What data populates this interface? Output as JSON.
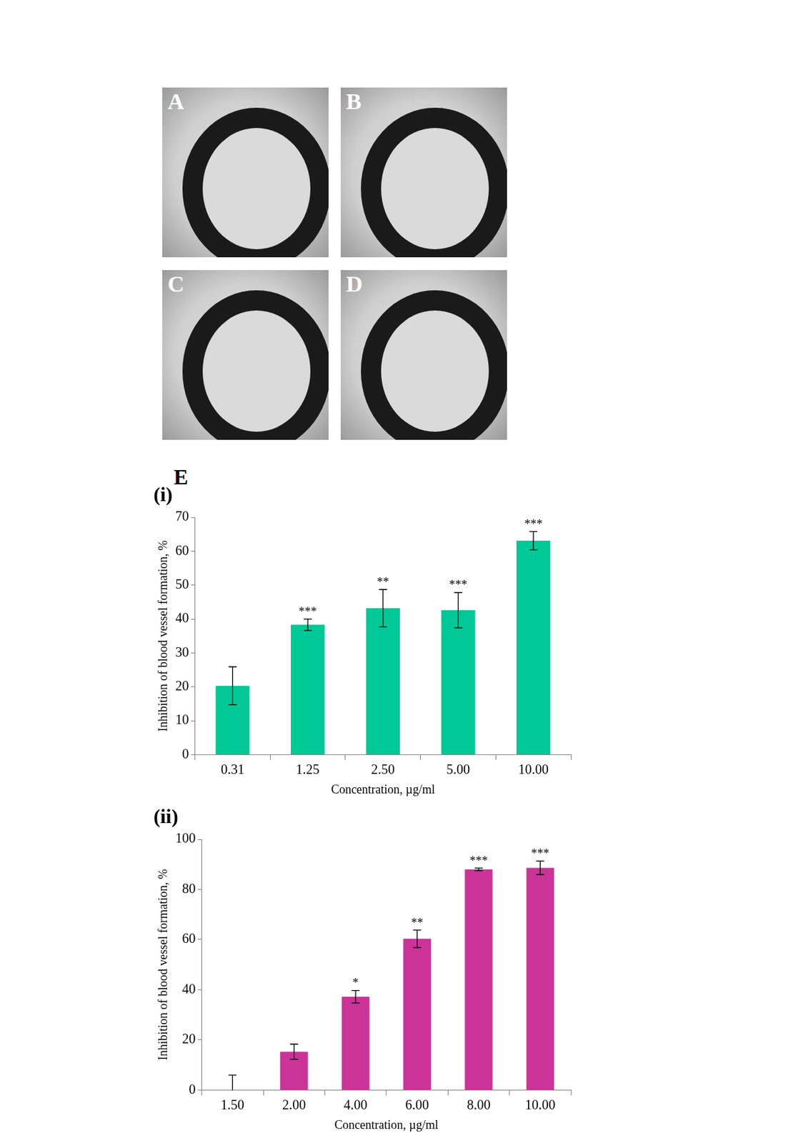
{
  "figure": {
    "images": [
      "A",
      "B",
      "C",
      "D"
    ],
    "panel": "E"
  },
  "chart_data": [
    {
      "type": "bar",
      "title": "(i)",
      "x_label": "Concentration, µg/ml",
      "y_label": "Inhibition of blood vessel formation, %",
      "categories": [
        "0.31",
        "1.25",
        "2.50",
        "5.00",
        "10.00"
      ],
      "values": [
        20.3,
        38.3,
        43.2,
        42.6,
        63.1
      ],
      "errors": [
        5.6,
        1.7,
        5.5,
        5.2,
        2.7
      ],
      "significance": [
        null,
        "***",
        "**",
        "***",
        "***"
      ],
      "color": "#00c896",
      "ylim": [
        0,
        70
      ],
      "yticks": [
        0,
        10,
        20,
        30,
        40,
        50,
        60,
        70
      ],
      "grid": false
    },
    {
      "type": "bar",
      "title": "(ii)",
      "x_label": "Concentration, µg/ml",
      "y_label": "Inhibition of blood vessel formation, %",
      "categories": [
        "1.50",
        "2.00",
        "4.00",
        "6.00",
        "8.00",
        "10.00"
      ],
      "values": [
        0,
        15.3,
        37.2,
        60.3,
        88.0,
        88.6
      ],
      "errors": [
        6.0,
        3.0,
        2.5,
        3.5,
        0.5,
        2.7
      ],
      "significance": [
        null,
        null,
        "*",
        "**",
        "***",
        "***"
      ],
      "color": "#cc3399",
      "ylim": [
        0,
        100
      ],
      "yticks": [
        0,
        20,
        40,
        60,
        80,
        100
      ],
      "grid": false
    }
  ]
}
